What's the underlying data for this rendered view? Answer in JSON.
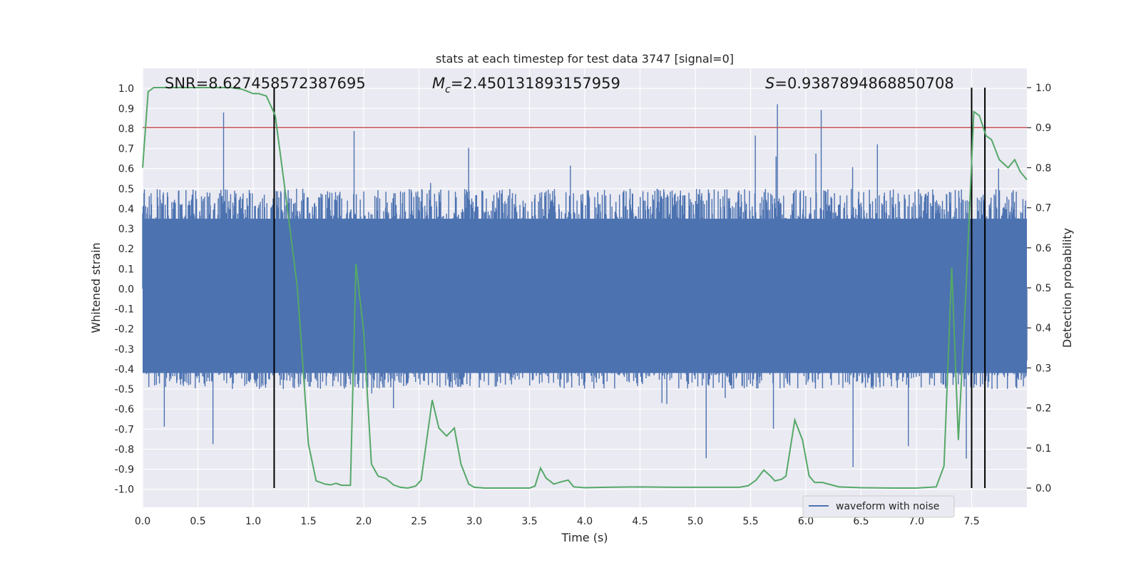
{
  "chart_data": {
    "type": "line",
    "title": "stats at each timestep for test data 3747 [signal=0]",
    "xlabel": "Time (s)",
    "ylabel": "Whitened strain",
    "y2label": "Detection probability",
    "xlim": [
      0,
      8
    ],
    "ylim": [
      -1.09,
      1.1
    ],
    "y2lim": [
      -0.048,
      1.048
    ],
    "xticks": [
      "0.0",
      "0.5",
      "1.0",
      "1.5",
      "2.0",
      "2.5",
      "3.0",
      "3.5",
      "4.0",
      "4.5",
      "5.0",
      "5.5",
      "6.0",
      "6.5",
      "7.0",
      "7.5"
    ],
    "yticks": [
      "1.0",
      "0.9",
      "0.8",
      "0.7",
      "0.6",
      "0.5",
      "0.4",
      "0.3",
      "0.2",
      "0.1",
      "0.0",
      "-0.1",
      "-0.2",
      "-0.3",
      "-0.4",
      "-0.5",
      "-0.6",
      "-0.7",
      "-0.8",
      "-0.9",
      "-1.0"
    ],
    "y2ticks": [
      "1.0",
      "0.9",
      "0.8",
      "0.7",
      "0.6",
      "0.5",
      "0.4",
      "0.3",
      "0.2",
      "0.1",
      "0.0"
    ],
    "grid": true,
    "legend_position": "bottom-right",
    "annotations": {
      "snr": "SNR=8.627458572387695",
      "mc_prefix": "M",
      "mc_sub": "c",
      "mc_value": "=2.450131893157959",
      "s_prefix": "S",
      "s_value": "=0.9387894868850708"
    },
    "series": [
      {
        "name": "waveform with noise",
        "color": "#4c72b0",
        "kind": "noise",
        "envelope": 0.5,
        "peak_max": 0.93,
        "peak_min": -0.98
      },
      {
        "color": "#55a868",
        "axis": "right",
        "x": [
          0.0,
          0.05,
          0.1,
          0.2,
          0.3,
          0.4,
          0.5,
          0.6,
          0.7,
          0.8,
          0.9,
          1.0,
          1.05,
          1.12,
          1.2,
          1.3,
          1.4,
          1.5,
          1.57,
          1.65,
          1.7,
          1.75,
          1.8,
          1.88,
          1.93,
          2.0,
          2.07,
          2.13,
          2.2,
          2.27,
          2.33,
          2.4,
          2.47,
          2.52,
          2.58,
          2.62,
          2.68,
          2.75,
          2.82,
          2.88,
          2.95,
          3.0,
          3.1,
          3.2,
          3.3,
          3.4,
          3.5,
          3.55,
          3.6,
          3.65,
          3.72,
          3.78,
          3.85,
          3.9,
          4.0,
          4.2,
          4.5,
          4.8,
          5.0,
          5.2,
          5.4,
          5.48,
          5.55,
          5.62,
          5.68,
          5.72,
          5.78,
          5.82,
          5.9,
          5.97,
          6.03,
          6.08,
          6.15,
          6.3,
          6.5,
          6.8,
          7.0,
          7.18,
          7.25,
          7.32,
          7.38,
          7.45,
          7.52,
          7.57,
          7.63,
          7.68,
          7.75,
          7.83,
          7.89,
          7.94,
          8.0
        ],
        "y": [
          0.8,
          0.99,
          1.0,
          1.0,
          1.0,
          1.0,
          1.0,
          1.0,
          1.0,
          1.0,
          0.996,
          0.985,
          0.985,
          0.979,
          0.93,
          0.72,
          0.5,
          0.11,
          0.018,
          0.01,
          0.008,
          0.012,
          0.007,
          0.007,
          0.56,
          0.39,
          0.06,
          0.03,
          0.024,
          0.008,
          0.002,
          0.0,
          0.005,
          0.02,
          0.14,
          0.22,
          0.15,
          0.13,
          0.15,
          0.06,
          0.01,
          0.002,
          0.0,
          0.0,
          0.0,
          0.0,
          0.0,
          0.005,
          0.05,
          0.025,
          0.01,
          0.015,
          0.02,
          0.003,
          0.001,
          0.002,
          0.003,
          0.002,
          0.002,
          0.002,
          0.002,
          0.006,
          0.02,
          0.045,
          0.03,
          0.018,
          0.022,
          0.03,
          0.17,
          0.12,
          0.03,
          0.014,
          0.014,
          0.003,
          0.001,
          0.0,
          0.0,
          0.003,
          0.055,
          0.55,
          0.12,
          0.5,
          0.94,
          0.93,
          0.88,
          0.87,
          0.82,
          0.8,
          0.82,
          0.79,
          0.77
        ]
      }
    ],
    "hlines": [
      {
        "axis": "right",
        "y": 0.9,
        "color": "#c44e52"
      }
    ],
    "vlines": [
      {
        "x": 1.19
      },
      {
        "x": 7.5
      },
      {
        "x": 7.62
      }
    ]
  }
}
